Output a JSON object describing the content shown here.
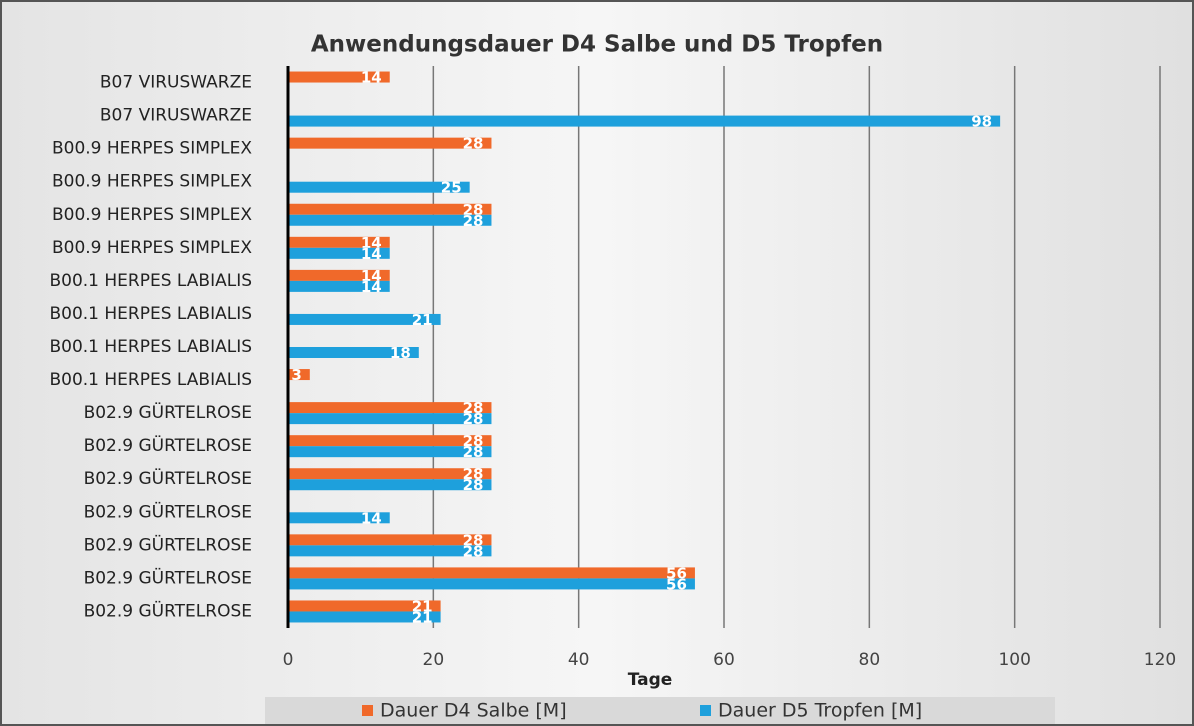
{
  "chart_data": {
    "type": "bar",
    "orientation": "horizontal",
    "title": "Anwendungsdauer D4 Salbe und D5 Tropfen",
    "x_label": "Tage",
    "categories": [
      "B07 VIRUSWARZE",
      "B07 VIRUSWARZE",
      "B00.9 HERPES SIMPLEX",
      "B00.9 HERPES SIMPLEX",
      "B00.9 HERPES SIMPLEX",
      "B00.9 HERPES SIMPLEX",
      "B00.1 HERPES LABIALIS",
      "B00.1 HERPES LABIALIS",
      "B00.1 HERPES LABIALIS",
      "B00.1 HERPES LABIALIS",
      "B02.9 GÜRTELROSE ",
      "B02.9 GÜRTELROSE",
      "B02.9 GÜRTELROSE",
      "B02.9 GÜRTELROSE",
      "B02.9 GÜRTELROSE",
      "B02.9 GÜRTELROSE",
      "B02.9 GÜRTELROSE"
    ],
    "series": [
      {
        "name": "Dauer D4 Salbe [M]",
        "color": "#f0692a",
        "values": [
          14,
          null,
          28,
          null,
          28,
          14,
          14,
          null,
          null,
          3,
          28,
          28,
          28,
          null,
          28,
          56,
          21
        ]
      },
      {
        "name": "Dauer D5 Tropfen [M]",
        "color": "#1ea0dc",
        "values": [
          null,
          98,
          null,
          25,
          28,
          14,
          14,
          21,
          18,
          null,
          28,
          28,
          28,
          14,
          28,
          56,
          21
        ]
      }
    ],
    "xlim": [
      0,
      120
    ],
    "xticks": [
      0,
      20,
      40,
      60,
      80,
      100,
      120
    ],
    "grid": true,
    "legend": "bottom"
  }
}
